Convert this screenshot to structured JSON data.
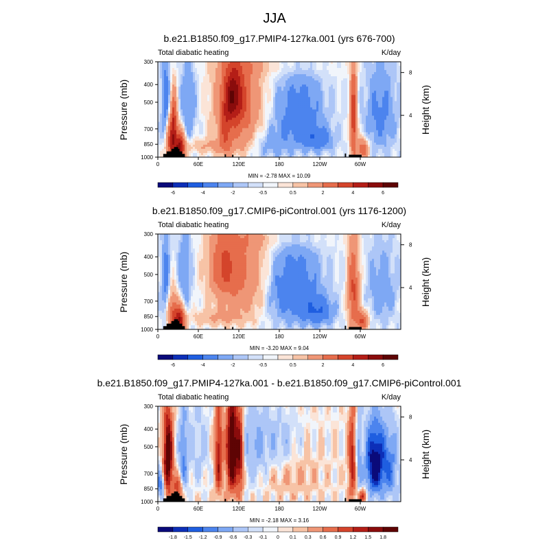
{
  "figure": {
    "main_title": "JJA"
  },
  "chart_data": [
    {
      "type": "heatmap",
      "title": "b.e21.B1850.f09_g17.PMIP4-127ka.001 (yrs 676-700)",
      "left_label": "Total diabatic heating",
      "units": "K/day",
      "ylabel": "Pressure (mb)",
      "ylabel_right": "Height (km)",
      "x_ticks": [
        "0",
        "60E",
        "120E",
        "180",
        "120W",
        "60W"
      ],
      "y_ticks": [
        "300",
        "400",
        "500",
        "700",
        "850",
        "1000"
      ],
      "y_right_ticks": [
        "8",
        "4"
      ],
      "stats": "MIN =  -2.78  MAX =  10.09",
      "colorbar_labels": [
        "-6",
        "-4",
        "-2",
        "-0.5",
        "0.5",
        "2",
        "4",
        "6"
      ],
      "fields": [
        {
          "lon": 20,
          "p": 820,
          "sx": 6,
          "sy": 170,
          "amp": 4.0
        },
        {
          "lon": 33,
          "p": 900,
          "sx": 5,
          "sy": 120,
          "amp": 5.0
        },
        {
          "lon": 24,
          "p": 620,
          "sx": 3,
          "sy": 150,
          "amp": 2.5
        },
        {
          "lon": 12,
          "p": 560,
          "sx": 4,
          "sy": 250,
          "amp": -1.6
        },
        {
          "lon": 45,
          "p": 520,
          "sx": 8,
          "sy": 200,
          "amp": -1.0
        },
        {
          "lon": 118,
          "p": 500,
          "sx": 22,
          "sy": 260,
          "amp": 3.3
        },
        {
          "lon": 112,
          "p": 460,
          "sx": 8,
          "sy": 100,
          "amp": 3.0
        },
        {
          "lon": 100,
          "p": 700,
          "sx": 6,
          "sy": 200,
          "amp": 1.8
        },
        {
          "lon": 75,
          "p": 870,
          "sx": 30,
          "sy": 60,
          "amp": 0.9
        },
        {
          "lon": 210,
          "p": 580,
          "sx": 24,
          "sy": 180,
          "amp": -1.6
        },
        {
          "lon": 238,
          "p": 800,
          "sx": 15,
          "sy": 80,
          "amp": -1.5
        },
        {
          "lon": 165,
          "p": 850,
          "sx": 25,
          "sy": 120,
          "amp": -0.7
        },
        {
          "lon": 290,
          "p": 620,
          "sx": 3.5,
          "sy": 260,
          "amp": 3.8
        },
        {
          "lon": 303,
          "p": 910,
          "sx": 6,
          "sy": 80,
          "amp": 3.0
        },
        {
          "lon": 330,
          "p": 580,
          "sx": 16,
          "sy": 220,
          "amp": -1.2
        },
        {
          "lon": 180,
          "p": 320,
          "sx": 60,
          "sy": 30,
          "amp": 0.4
        }
      ]
    },
    {
      "type": "heatmap",
      "title": "b.e21.B1850.f09_g17.CMIP6-piControl.001 (yrs 1176-1200)",
      "left_label": "Total diabatic heating",
      "units": "K/day",
      "ylabel": "Pressure (mb)",
      "ylabel_right": "Height (km)",
      "x_ticks": [
        "0",
        "60E",
        "120E",
        "180",
        "120W",
        "60W"
      ],
      "y_ticks": [
        "300",
        "400",
        "500",
        "700",
        "850",
        "1000"
      ],
      "y_right_ticks": [
        "8",
        "4"
      ],
      "stats": "MIN =  -3.20  MAX =   9.04",
      "colorbar_labels": [
        "-6",
        "-4",
        "-2",
        "-0.5",
        "0.5",
        "2",
        "4",
        "6"
      ],
      "fields": [
        {
          "lon": 22,
          "p": 840,
          "sx": 6,
          "sy": 150,
          "amp": 3.0
        },
        {
          "lon": 33,
          "p": 900,
          "sx": 5,
          "sy": 110,
          "amp": 4.5
        },
        {
          "lon": 12,
          "p": 560,
          "sx": 4,
          "sy": 250,
          "amp": -1.3
        },
        {
          "lon": 40,
          "p": 480,
          "sx": 7,
          "sy": 200,
          "amp": -1.0
        },
        {
          "lon": 120,
          "p": 480,
          "sx": 28,
          "sy": 250,
          "amp": 2.3
        },
        {
          "lon": 95,
          "p": 450,
          "sx": 12,
          "sy": 120,
          "amp": 1.8
        },
        {
          "lon": 80,
          "p": 870,
          "sx": 30,
          "sy": 60,
          "amp": 0.8
        },
        {
          "lon": 200,
          "p": 600,
          "sx": 28,
          "sy": 200,
          "amp": -1.8
        },
        {
          "lon": 238,
          "p": 800,
          "sx": 15,
          "sy": 90,
          "amp": -1.7
        },
        {
          "lon": 290,
          "p": 620,
          "sx": 6,
          "sy": 250,
          "amp": 3.2
        },
        {
          "lon": 303,
          "p": 900,
          "sx": 6,
          "sy": 80,
          "amp": 3.0
        },
        {
          "lon": 332,
          "p": 600,
          "sx": 15,
          "sy": 200,
          "amp": -0.9
        },
        {
          "lon": 180,
          "p": 320,
          "sx": 60,
          "sy": 30,
          "amp": 0.4
        }
      ]
    },
    {
      "type": "heatmap",
      "title": "b.e21.B1850.f09_g17.PMIP4-127ka.001 - b.e21.B1850.f09_g17.CMIP6-piControl.001",
      "left_label": "Total diabatic heating",
      "units": "K/day",
      "ylabel": "Pressure (mb)",
      "ylabel_right": "Height (km)",
      "x_ticks": [
        "0",
        "60E",
        "120E",
        "180",
        "120W",
        "60W"
      ],
      "y_ticks": [
        "300",
        "400",
        "500",
        "700",
        "850",
        "1000"
      ],
      "y_right_ticks": [
        "8",
        "4"
      ],
      "stats": "MIN =  -2.18  MAX =   3.16",
      "colorbar_labels": [
        "-1.8",
        "-1.5",
        "-1.2",
        "-0.9",
        "-0.6",
        "-0.3",
        "-0.1",
        "0",
        "0.1",
        "0.3",
        "0.6",
        "0.9",
        "1.2",
        "1.5",
        "1.8"
      ],
      "fields": [
        {
          "lon": 15,
          "p": 580,
          "sx": 5,
          "sy": 220,
          "amp": 2.3
        },
        {
          "lon": 5,
          "p": 800,
          "sx": 4,
          "sy": 100,
          "amp": -1.2
        },
        {
          "lon": 30,
          "p": 850,
          "sx": 5,
          "sy": 90,
          "amp": 1.2
        },
        {
          "lon": 38,
          "p": 560,
          "sx": 5,
          "sy": 220,
          "amp": -1.0
        },
        {
          "lon": 60,
          "p": 500,
          "sx": 10,
          "sy": 200,
          "amp": -0.4
        },
        {
          "lon": 90,
          "p": 550,
          "sx": 4,
          "sy": 250,
          "amp": 1.5
        },
        {
          "lon": 110,
          "p": 520,
          "sx": 6,
          "sy": 250,
          "amp": 2.4
        },
        {
          "lon": 122,
          "p": 560,
          "sx": 4,
          "sy": 220,
          "amp": 1.6
        },
        {
          "lon": 140,
          "p": 500,
          "sx": 15,
          "sy": 200,
          "amp": -0.6
        },
        {
          "lon": 180,
          "p": 480,
          "sx": 20,
          "sy": 120,
          "amp": -0.5
        },
        {
          "lon": 200,
          "p": 720,
          "sx": 30,
          "sy": 150,
          "amp": 0.3
        },
        {
          "lon": 288,
          "p": 600,
          "sx": 4,
          "sy": 250,
          "amp": 1.4
        },
        {
          "lon": 298,
          "p": 600,
          "sx": 3,
          "sy": 250,
          "amp": -0.7
        },
        {
          "lon": 322,
          "p": 620,
          "sx": 10,
          "sy": 200,
          "amp": -2.2
        },
        {
          "lon": 345,
          "p": 640,
          "sx": 8,
          "sy": 220,
          "amp": -1.0
        },
        {
          "lon": 303,
          "p": 930,
          "sx": 5,
          "sy": 60,
          "amp": 1.2
        }
      ]
    }
  ],
  "palettes": {
    "full": [
      "#0a0a7a",
      "#0d2fb8",
      "#1f5ee0",
      "#4c84ee",
      "#7ea8f4",
      "#adc6f7",
      "#d2e0f9",
      "#f1f5fb",
      "#fbe4d7",
      "#f7c3a6",
      "#ef9676",
      "#e66d4c",
      "#d4442b",
      "#b41e17",
      "#8a0c0c",
      "#5e0404"
    ],
    "diff": [
      "#0a0a7a",
      "#0d2fb8",
      "#1f5ee0",
      "#4c84ee",
      "#7ea8f4",
      "#adc6f7",
      "#d2e0f9",
      "#f1f5fb",
      "#fbe4d7",
      "#f7c3a6",
      "#ef9676",
      "#e66d4c",
      "#d4442b",
      "#b41e17",
      "#8a0c0c",
      "#5e0404"
    ]
  }
}
